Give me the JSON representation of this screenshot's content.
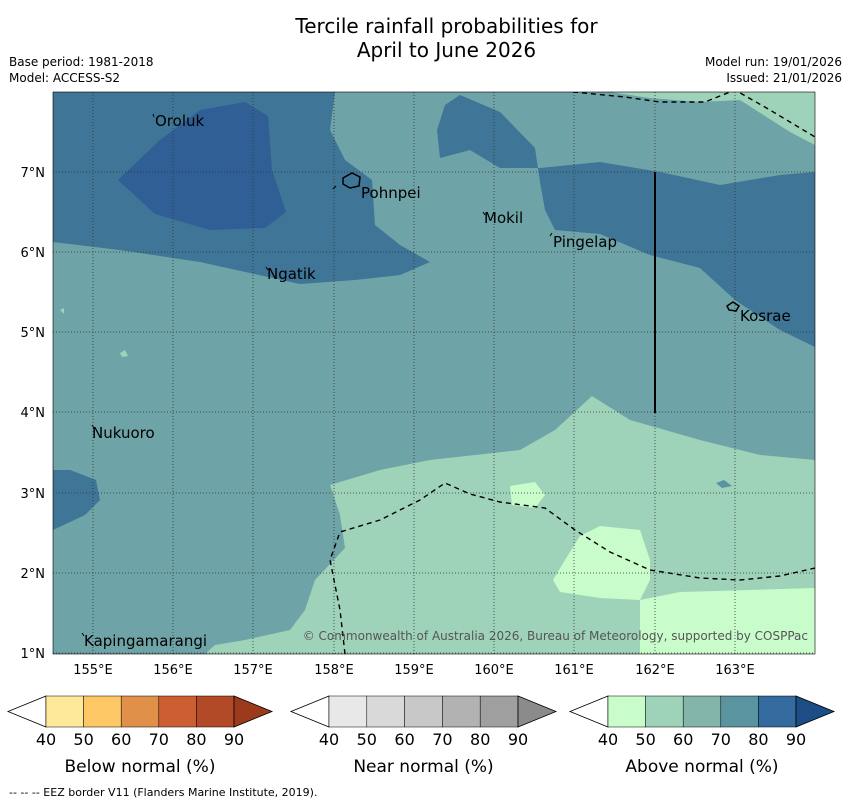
{
  "title": {
    "line1": "Tercile rainfall probabilities for",
    "line2": "April to June 2026"
  },
  "header": {
    "base_period": "Base period: 1981-2018",
    "model": "Model: ACCESS-S2",
    "model_run": "Model run: 19/01/2026",
    "issued": "Issued: 21/01/2026"
  },
  "map": {
    "lon_ticks": [
      "155°E",
      "156°E",
      "157°E",
      "158°E",
      "159°E",
      "160°E",
      "161°E",
      "162°E",
      "163°E"
    ],
    "lat_ticks": [
      "7°N",
      "6°N",
      "5°N",
      "4°N",
      "3°N",
      "2°N",
      "1°N"
    ],
    "places": [
      {
        "name": "Oroluk"
      },
      {
        "name": "Pohnpei"
      },
      {
        "name": "Mokil"
      },
      {
        "name": "Pingelap"
      },
      {
        "name": "Ngatik"
      },
      {
        "name": "Kosrae"
      },
      {
        "name": "Nukuoro"
      },
      {
        "name": "Kapingamarangi"
      }
    ],
    "copyright": "© Commonwealth of Australia 2026, Bureau of Meteorology, supported by COSPPac"
  },
  "colorbars": [
    {
      "title": "Below normal (%)",
      "ticks": [
        "40",
        "50",
        "60",
        "70",
        "80",
        "90"
      ],
      "colors": [
        "#ffffff",
        "#fee99a",
        "#fdc766",
        "#e1904a",
        "#cc5f31",
        "#b24a28",
        "#9c3a1d"
      ]
    },
    {
      "title": "Near normal (%)",
      "ticks": [
        "40",
        "50",
        "60",
        "70",
        "80",
        "90"
      ],
      "colors": [
        "#ffffff",
        "#e8e8e8",
        "#d9d9d9",
        "#c8c8c8",
        "#b2b2b2",
        "#9f9f9f",
        "#8b8b8b"
      ]
    },
    {
      "title": "Above normal (%)",
      "ticks": [
        "40",
        "50",
        "60",
        "70",
        "80",
        "90"
      ],
      "colors": [
        "#ffffff",
        "#c9fccb",
        "#9fd3b9",
        "#84b5aa",
        "#5a94a1",
        "#346b9e",
        "#1d4d85"
      ]
    }
  ],
  "footnote": "--  --  -- EEZ border V11 (Flanders Marine Institute, 2019)."
}
